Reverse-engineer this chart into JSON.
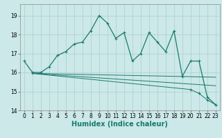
{
  "title": "",
  "xlabel": "Humidex (Indice chaleur)",
  "bg_color": "#cce8e8",
  "grid_color": "#aacfcf",
  "line_color": "#1a7a6e",
  "xlim": [
    -0.5,
    23.5
  ],
  "ylim": [
    14.0,
    19.6
  ],
  "yticks": [
    14,
    15,
    16,
    17,
    18,
    19
  ],
  "xticks": [
    0,
    1,
    2,
    3,
    4,
    5,
    6,
    7,
    8,
    9,
    10,
    11,
    12,
    13,
    14,
    15,
    16,
    17,
    18,
    19,
    20,
    21,
    22,
    23
  ],
  "series1_x": [
    0,
    1,
    2,
    3,
    4,
    5,
    6,
    7,
    8,
    9,
    10,
    11,
    12,
    13,
    14,
    15,
    16,
    17,
    18,
    19,
    20,
    21,
    22,
    23
  ],
  "series1_y": [
    16.6,
    16.0,
    16.0,
    16.3,
    16.9,
    17.1,
    17.5,
    17.6,
    18.2,
    19.0,
    18.6,
    17.8,
    18.1,
    16.6,
    17.0,
    18.1,
    17.6,
    17.1,
    18.2,
    15.8,
    16.6,
    16.6,
    14.7,
    14.3
  ],
  "series2_x": [
    1,
    23
  ],
  "series2_y": [
    15.95,
    15.75
  ],
  "series3_x": [
    1,
    23
  ],
  "series3_y": [
    15.95,
    15.3
  ],
  "series4_x": [
    1,
    20,
    21,
    22,
    23
  ],
  "series4_y": [
    15.95,
    15.1,
    14.9,
    14.55,
    14.3
  ],
  "ticklabel_fontsize": 5.5,
  "xlabel_fontsize": 7
}
